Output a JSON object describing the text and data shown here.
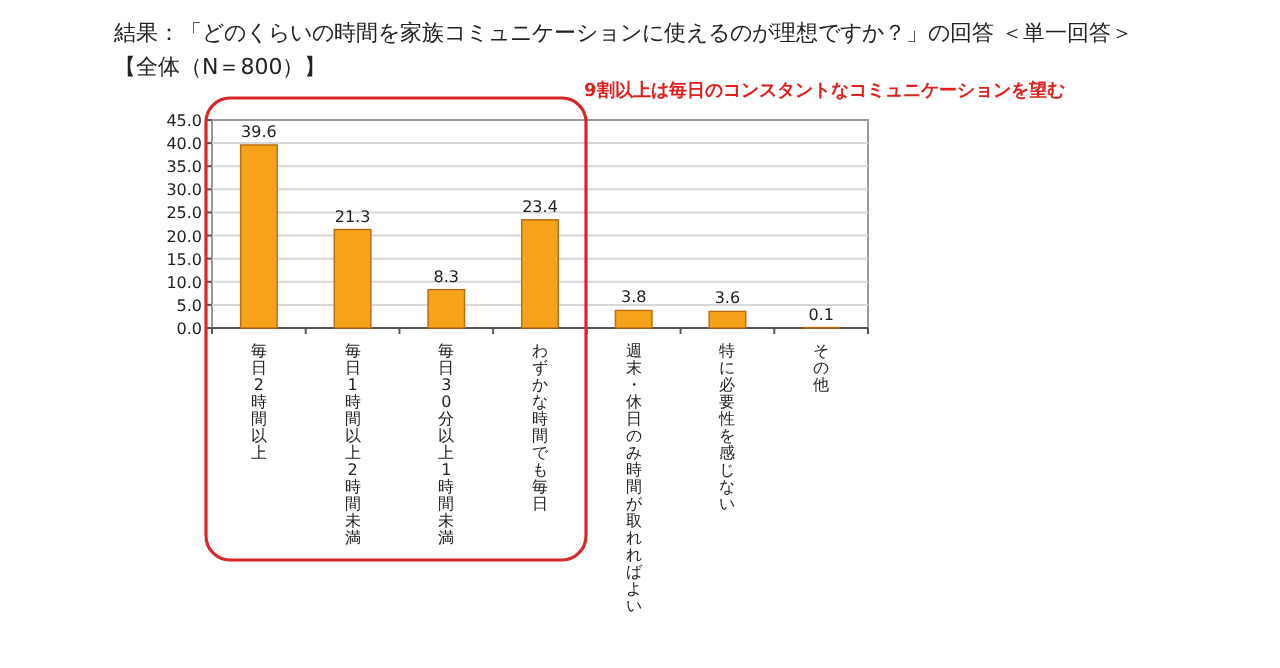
{
  "chart_data": {
    "type": "bar",
    "title": "結果：「どのくらいの時間を家族コミュニケーションに使えるのが理想ですか？」の回答 ＜単一回答＞",
    "subtitle": "【全体（N＝800）】",
    "categories": [
      "毎日2時間以上",
      "毎日1時間以上2時間未満",
      "毎日30分以上1時間未満",
      "わずかな時間でも毎日",
      "週末・休日のみ時間が取れればよい",
      "特に必要性を感じない",
      "その他"
    ],
    "values": [
      39.6,
      21.3,
      8.3,
      23.4,
      3.8,
      3.6,
      0.1
    ],
    "color": "#f7a21b",
    "data_labels": true,
    "ylim": [
      0,
      45
    ],
    "yticks": [
      {
        "value": 0,
        "label": "0.0"
      },
      {
        "value": 5,
        "label": "5.0"
      },
      {
        "value": 10,
        "label": "10.0"
      },
      {
        "value": 15,
        "label": "15.0"
      },
      {
        "value": 20,
        "label": "20.0"
      },
      {
        "value": 25,
        "label": "25.0"
      },
      {
        "value": 30,
        "label": "30.0"
      },
      {
        "value": 35,
        "label": "35.0"
      },
      {
        "value": 40,
        "label": "40.0"
      },
      {
        "value": 45,
        "label": "45.0"
      }
    ],
    "grid": "y",
    "annotations": [
      "9割以上は毎日のコンスタントなコミュニケーションを望む"
    ]
  }
}
